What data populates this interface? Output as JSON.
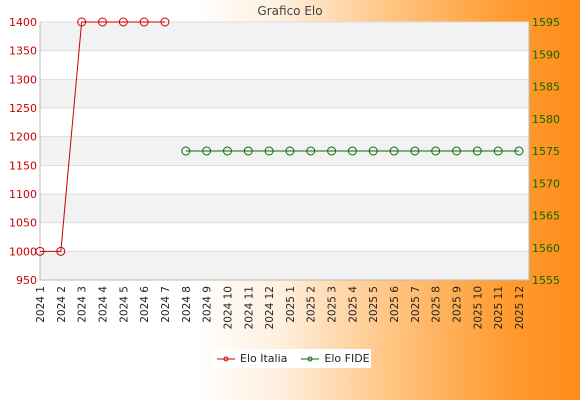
{
  "chart_data": {
    "type": "line",
    "title": "Grafico Elo",
    "categories": [
      "2024 1",
      "2024 2",
      "2024 3",
      "2024 4",
      "2024 5",
      "2024 6",
      "2024 7",
      "2024 8",
      "2024 9",
      "2024 10",
      "2024 11",
      "2024 12",
      "2025 1",
      "2025 2",
      "2025 3",
      "2025 4",
      "2025 5",
      "2025 6",
      "2025 7",
      "2025 8",
      "2025 9",
      "2025 10",
      "2025 11",
      "2025 12"
    ],
    "left_axis": {
      "ylim": [
        950,
        1400
      ],
      "ticks": [
        950,
        1000,
        1050,
        1100,
        1150,
        1200,
        1250,
        1300,
        1350,
        1400
      ],
      "color": "#cc0000"
    },
    "right_axis": {
      "ylim": [
        1555,
        1595
      ],
      "ticks": [
        1555,
        1560,
        1565,
        1570,
        1575,
        1580,
        1585,
        1590,
        1595
      ],
      "color": "#0a6a0a"
    },
    "series": [
      {
        "name": "Elo Italia",
        "axis": "left",
        "color": "#cc0000",
        "values": [
          1000,
          1000,
          1400,
          1400,
          1400,
          1400,
          1400,
          null,
          null,
          null,
          null,
          null,
          null,
          null,
          null,
          null,
          null,
          null,
          null,
          null,
          null,
          null,
          null,
          null
        ]
      },
      {
        "name": "Elo FIDE",
        "axis": "right",
        "color": "#0a6a0a",
        "values": [
          null,
          null,
          null,
          null,
          null,
          null,
          null,
          1575,
          1575,
          1575,
          1575,
          1575,
          1575,
          1575,
          1575,
          1575,
          1575,
          1575,
          1575,
          1575,
          1575,
          1575,
          1575,
          1575
        ]
      }
    ],
    "grid": true,
    "legend": "bottom-center"
  }
}
